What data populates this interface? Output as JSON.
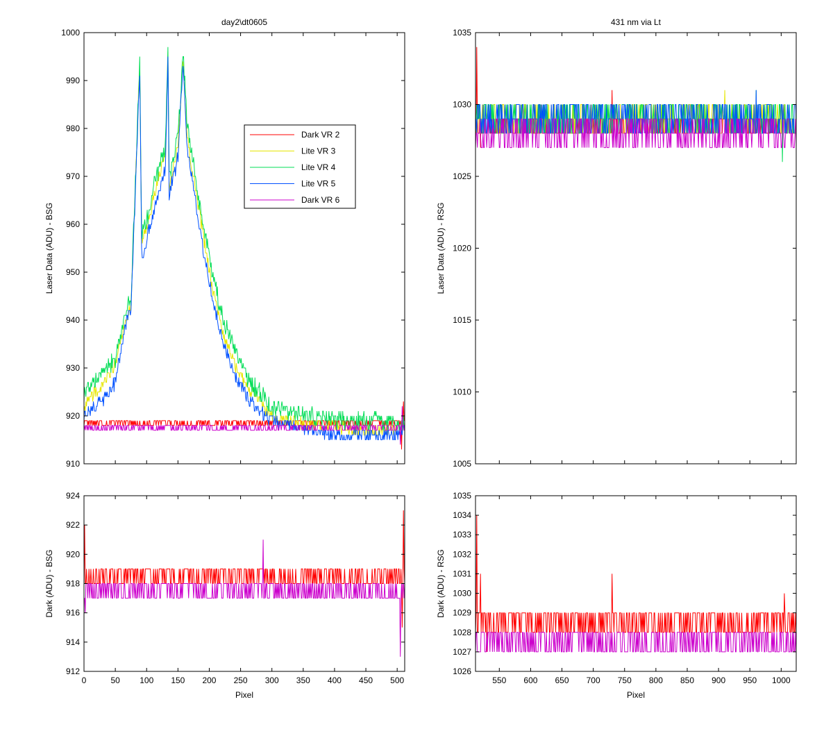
{
  "colors": {
    "Dark VR 2": "#ff0000",
    "Lite VR 3": "#e6e600",
    "Lite VR 4": "#00dd55",
    "Lite VR 5": "#0050ff",
    "Dark VR 6": "#cc00cc",
    "axis": "#000000",
    "background": "#ffffff"
  },
  "chart_data": [
    {
      "id": "top-left",
      "type": "line",
      "title": "day2\\dt0605",
      "xlabel": "",
      "ylabel": "Laser Data (ADU) - BSG",
      "xlim": [
        0,
        512
      ],
      "ylim": [
        910,
        1000
      ],
      "xticks": [
        0,
        50,
        100,
        150,
        200,
        250,
        300,
        350,
        400,
        450,
        500
      ],
      "xtick_labels_shown": false,
      "yticks": [
        910,
        920,
        930,
        940,
        950,
        960,
        970,
        980,
        990,
        1000
      ],
      "legend": {
        "position": "upper-right",
        "entries": [
          "Dark VR 2",
          "Lite VR 3",
          "Lite VR 4",
          "Lite VR 5",
          "Dark VR 6"
        ]
      },
      "series": [
        {
          "name": "Dark VR 2",
          "kind": "noise",
          "levels": [
            918,
            919
          ],
          "ranges": [
            [
              0,
              512
            ]
          ],
          "spikes": [
            [
              507,
              913
            ],
            [
              510,
              923
            ]
          ]
        },
        {
          "name": "Lite VR 3",
          "kind": "profile",
          "noise": 1.2,
          "points": [
            [
              0,
              922
            ],
            [
              10,
              924
            ],
            [
              30,
              926
            ],
            [
              50,
              931
            ],
            [
              70,
              942
            ],
            [
              75,
              943
            ],
            [
              89,
              994
            ],
            [
              92,
              957
            ],
            [
              100,
              959
            ],
            [
              110,
              965
            ],
            [
              120,
              970
            ],
            [
              130,
              975
            ],
            [
              134,
              995
            ],
            [
              136,
              968
            ],
            [
              150,
              976
            ],
            [
              158,
              993
            ],
            [
              165,
              978
            ],
            [
              180,
              966
            ],
            [
              200,
              950
            ],
            [
              220,
              938
            ],
            [
              240,
              931
            ],
            [
              260,
              926
            ],
            [
              280,
              923
            ],
            [
              300,
              920
            ],
            [
              330,
              919
            ],
            [
              360,
              918
            ],
            [
              400,
              918
            ],
            [
              430,
              917
            ],
            [
              470,
              917
            ],
            [
              500,
              917
            ],
            [
              512,
              918
            ]
          ]
        },
        {
          "name": "Lite VR 4",
          "kind": "profile",
          "noise": 1.8,
          "points": [
            [
              0,
              925
            ],
            [
              10,
              926
            ],
            [
              30,
              929
            ],
            [
              50,
              932
            ],
            [
              70,
              943
            ],
            [
              75,
              944
            ],
            [
              89,
              994
            ],
            [
              92,
              958
            ],
            [
              100,
              961
            ],
            [
              110,
              967
            ],
            [
              120,
              972
            ],
            [
              130,
              976
            ],
            [
              134,
              996
            ],
            [
              136,
              970
            ],
            [
              150,
              978
            ],
            [
              158,
              996
            ],
            [
              165,
              980
            ],
            [
              180,
              968
            ],
            [
              200,
              953
            ],
            [
              220,
              941
            ],
            [
              240,
              934
            ],
            [
              260,
              928
            ],
            [
              280,
              925
            ],
            [
              300,
              922
            ],
            [
              330,
              921
            ],
            [
              360,
              920
            ],
            [
              400,
              919
            ],
            [
              430,
              919
            ],
            [
              470,
              919
            ],
            [
              500,
              918
            ],
            [
              512,
              919
            ]
          ]
        },
        {
          "name": "Lite VR 5",
          "kind": "profile",
          "noise": 1.3,
          "points": [
            [
              0,
              920
            ],
            [
              10,
              921
            ],
            [
              30,
              923
            ],
            [
              50,
              927
            ],
            [
              70,
              941
            ],
            [
              75,
              942
            ],
            [
              89,
              992
            ],
            [
              92,
              955
            ],
            [
              95,
              953
            ],
            [
              100,
              957
            ],
            [
              110,
              962
            ],
            [
              120,
              967
            ],
            [
              130,
              972
            ],
            [
              134,
              994
            ],
            [
              136,
              966
            ],
            [
              150,
              974
            ],
            [
              158,
              993
            ],
            [
              165,
              976
            ],
            [
              180,
              963
            ],
            [
              200,
              948
            ],
            [
              220,
              936
            ],
            [
              240,
              929
            ],
            [
              260,
              924
            ],
            [
              280,
              921
            ],
            [
              300,
              919
            ],
            [
              330,
              918
            ],
            [
              360,
              917
            ],
            [
              400,
              916
            ],
            [
              430,
              916
            ],
            [
              470,
              916
            ],
            [
              500,
              916
            ],
            [
              512,
              918
            ]
          ]
        },
        {
          "name": "Dark VR 6",
          "kind": "noise",
          "levels": [
            917,
            918
          ],
          "ranges": [
            [
              0,
              512
            ]
          ],
          "spikes": [
            [
              505,
              914
            ],
            [
              508,
              922
            ]
          ]
        }
      ]
    },
    {
      "id": "top-right",
      "type": "line",
      "title": "431 nm via Lt",
      "xlabel": "",
      "ylabel": "Laser Data (ADU) - RSG",
      "xlim": [
        512,
        1024
      ],
      "ylim": [
        1005,
        1035
      ],
      "xticks": [
        550,
        600,
        650,
        700,
        750,
        800,
        850,
        900,
        950,
        1000
      ],
      "xtick_labels_shown": false,
      "yticks": [
        1005,
        1010,
        1015,
        1020,
        1025,
        1030,
        1035
      ],
      "series": [
        {
          "name": "Dark VR 2",
          "kind": "noise",
          "levels": [
            1028,
            1029
          ],
          "ranges": [
            [
              512,
              1024
            ]
          ],
          "spikes": [
            [
              514,
              1034
            ],
            [
              520,
              1027
            ],
            [
              730,
              1031
            ],
            [
              1005,
              1030
            ]
          ]
        },
        {
          "name": "Lite VR 3",
          "kind": "noise",
          "levels": [
            1028,
            1030
          ],
          "ranges": [
            [
              512,
              1024
            ]
          ],
          "spikes": [
            [
              910,
              1031
            ]
          ]
        },
        {
          "name": "Lite VR 4",
          "kind": "noise",
          "levels": [
            1028,
            1030
          ],
          "ranges": [
            [
              512,
              1024
            ]
          ],
          "spikes": [
            [
              1002,
              1026
            ],
            [
              960,
              1031
            ]
          ]
        },
        {
          "name": "Lite VR 5",
          "kind": "noise",
          "levels": [
            1028,
            1030
          ],
          "ranges": [
            [
              512,
              1024
            ]
          ],
          "spikes": [
            [
              960,
              1031
            ]
          ]
        },
        {
          "name": "Dark VR 6",
          "kind": "noise",
          "levels": [
            1027,
            1029
          ],
          "ranges": [
            [
              512,
              1024
            ]
          ],
          "spikes": []
        }
      ]
    },
    {
      "id": "bottom-left",
      "type": "line",
      "title": "",
      "xlabel": "Pixel",
      "ylabel": "Dark (ADU) - BSG",
      "xlim": [
        0,
        512
      ],
      "ylim": [
        912,
        924
      ],
      "xticks": [
        0,
        50,
        100,
        150,
        200,
        250,
        300,
        350,
        400,
        450,
        500
      ],
      "xtick_labels_shown": true,
      "yticks": [
        912,
        914,
        916,
        918,
        920,
        922,
        924
      ],
      "series": [
        {
          "name": "Dark VR 2",
          "kind": "noise",
          "levels": [
            918,
            919
          ],
          "ranges": [
            [
              0,
              280
            ],
            [
              285,
              512
            ]
          ],
          "spikes": [
            [
              1,
              922
            ],
            [
              510,
              923
            ],
            [
              508,
              915
            ]
          ]
        },
        {
          "name": "Dark VR 6",
          "kind": "noise",
          "levels": [
            917,
            918
          ],
          "ranges": [
            [
              0,
              512
            ]
          ],
          "spikes": [
            [
              2,
              916
            ],
            [
              286,
              921
            ],
            [
              505,
              913
            ]
          ]
        }
      ]
    },
    {
      "id": "bottom-right",
      "type": "line",
      "title": "",
      "xlabel": "Pixel",
      "ylabel": "Dark (ADU) - RSG",
      "xlim": [
        512,
        1024
      ],
      "ylim": [
        1026,
        1035
      ],
      "xticks": [
        550,
        600,
        650,
        700,
        750,
        800,
        850,
        900,
        950,
        1000
      ],
      "xtick_labels_shown": true,
      "yticks": [
        1026,
        1027,
        1028,
        1029,
        1030,
        1031,
        1032,
        1033,
        1034,
        1035
      ],
      "series": [
        {
          "name": "Dark VR 2",
          "kind": "noise",
          "levels": [
            1028,
            1029
          ],
          "ranges": [
            [
              512,
              1024
            ]
          ],
          "spikes": [
            [
              514,
              1034
            ],
            [
              520,
              1031
            ],
            [
              530,
              1027
            ],
            [
              730,
              1031
            ],
            [
              1005,
              1030
            ]
          ]
        },
        {
          "name": "Dark VR 6",
          "kind": "noise",
          "levels": [
            1027,
            1028
          ],
          "ranges": [
            [
              512,
              1024
            ]
          ],
          "spikes": []
        }
      ]
    }
  ]
}
